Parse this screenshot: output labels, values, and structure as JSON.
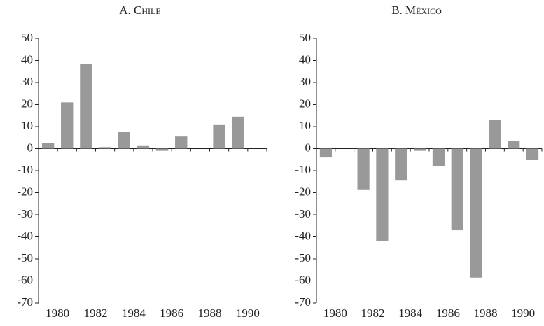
{
  "chart_data": [
    {
      "type": "bar",
      "title": "A. Chile",
      "categories": [
        "1980",
        null,
        "1982",
        null,
        "1984",
        null,
        "1986",
        null,
        "1988",
        null,
        "1990",
        null
      ],
      "values": [
        2.5,
        21,
        38.5,
        0.7,
        7.5,
        1.5,
        -1,
        5.5,
        null,
        11,
        14.5,
        null
      ],
      "color": "#999999",
      "ylim": [
        -70,
        50
      ],
      "yticks": [
        -70,
        -60,
        -50,
        -40,
        -30,
        -20,
        -10,
        0,
        10,
        20,
        30,
        40,
        50
      ]
    },
    {
      "type": "bar",
      "title": "B. México",
      "categories": [
        "1980",
        null,
        "1982",
        null,
        "1984",
        null,
        "1986",
        null,
        "1988",
        null,
        "1990",
        null
      ],
      "values": [
        -4,
        null,
        -18.5,
        -42,
        -14.5,
        -1,
        -8,
        -37,
        -58.5,
        13,
        3.5,
        -5
      ],
      "color": "#999999",
      "ylim": [
        -70,
        50
      ],
      "yticks": [
        -70,
        -60,
        -50,
        -40,
        -30,
        -20,
        -10,
        0,
        10,
        20,
        30,
        40,
        50
      ]
    }
  ]
}
